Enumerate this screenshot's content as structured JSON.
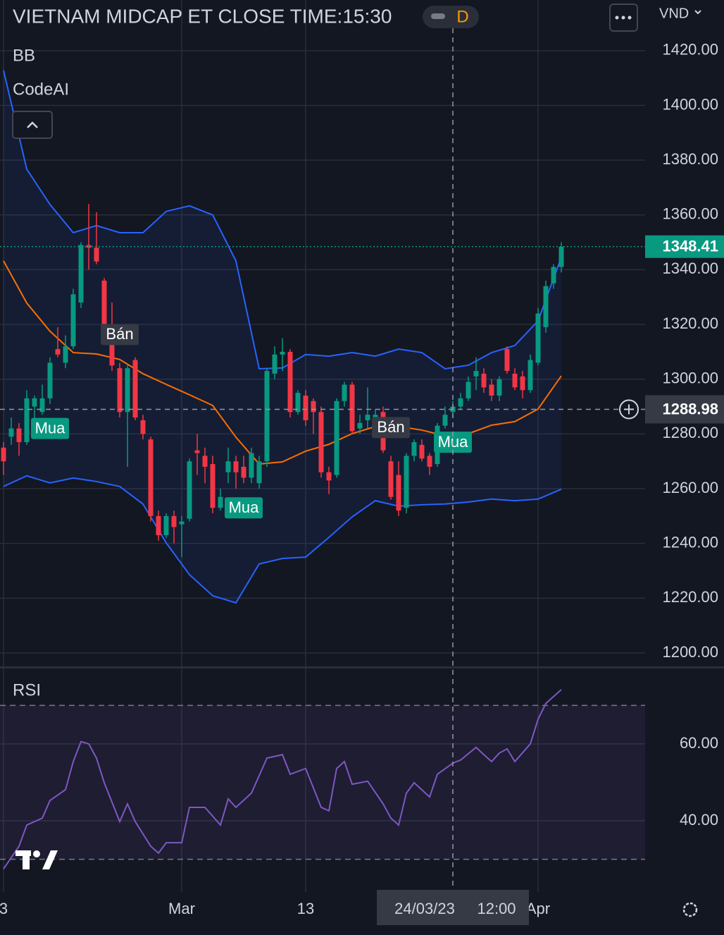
{
  "header": {
    "title": "VIETNAM MIDCAP ET CLOSE TIME:15:30",
    "interval": "D",
    "currency": "VND"
  },
  "chart_data": [
    {
      "type": "candlestick",
      "indicators": [
        "BB",
        "CodeAI"
      ],
      "categories": [
        "3",
        null,
        null,
        null,
        null,
        null,
        null,
        null,
        null,
        null,
        null,
        null,
        null,
        null,
        null,
        null,
        null,
        null,
        null,
        null,
        null,
        null,
        null,
        "Mar",
        null,
        null,
        null,
        null,
        null,
        null,
        null,
        null,
        null,
        null,
        null,
        null,
        null,
        null,
        null,
        "13",
        null,
        null,
        null,
        null,
        null,
        null,
        null,
        null,
        null,
        null,
        null,
        null,
        null,
        null,
        null,
        null,
        null,
        null,
        null,
        null,
        null,
        null,
        null,
        null,
        null,
        null,
        null,
        null,
        null,
        "Apr",
        null,
        null,
        null
      ],
      "open": [
        1275,
        1279,
        1282,
        1277,
        1290,
        1288,
        1293,
        1311,
        1306,
        1312,
        1328,
        1349,
        1348,
        1336,
        1320,
        1304,
        1288,
        1307,
        1285,
        1278,
        1250,
        1243,
        1250,
        1247,
        1249,
        1274,
        1272,
        1269,
        1253,
        1266,
        1270,
        1268,
        1264,
        1262,
        1270,
        1302,
        1309,
        1310,
        1288,
        1294,
        1292,
        1288,
        1266,
        1265,
        1292,
        1298,
        1282,
        1285,
        1286,
        1288,
        1270,
        1265,
        1253,
        1272,
        1276,
        1272,
        1269,
        1283,
        1288,
        1290,
        1293,
        1301,
        1302,
        1298,
        1294,
        1311,
        1302,
        1301,
        1296,
        1306,
        1319,
        1335,
        1341
      ],
      "high": [
        1277,
        1286,
        1284,
        1296,
        1294,
        1298,
        1308,
        1319,
        1316,
        1333,
        1350,
        1364,
        1361,
        1337,
        1328,
        1306,
        1305,
        1308,
        1287,
        1279,
        1252,
        1251,
        1252,
        1250,
        1271,
        1280,
        1275,
        1272,
        1260,
        1275,
        1272,
        1272,
        1275,
        1272,
        1304,
        1312,
        1315,
        1311,
        1296,
        1296,
        1293,
        1290,
        1268,
        1293,
        1299,
        1299,
        1287,
        1297,
        1289,
        1290,
        1272,
        1270,
        1273,
        1278,
        1278,
        1273,
        1284,
        1290,
        1292,
        1295,
        1301,
        1308,
        1304,
        1300,
        1301,
        1312,
        1304,
        1303,
        1309,
        1326,
        1336,
        1342,
        1350
      ],
      "low": [
        1265,
        1276,
        1272,
        1276,
        1285,
        1287,
        1291,
        1308,
        1304,
        1311,
        1326,
        1340,
        1342,
        1317,
        1303,
        1286,
        1268,
        1285,
        1278,
        1248,
        1241,
        1242,
        1240,
        1235,
        1248,
        1265,
        1262,
        1251,
        1252,
        1262,
        1260,
        1262,
        1262,
        1260,
        1268,
        1300,
        1303,
        1286,
        1287,
        1283,
        1280,
        1264,
        1258,
        1264,
        1290,
        1280,
        1280,
        1282,
        1284,
        1273,
        1256,
        1250,
        1251,
        1270,
        1270,
        1265,
        1268,
        1282,
        1286,
        1289,
        1292,
        1296,
        1295,
        1292,
        1292,
        1302,
        1296,
        1293,
        1295,
        1305,
        1317,
        1333,
        1339
      ],
      "close": [
        1270,
        1282,
        1277,
        1293,
        1293,
        1293,
        1306,
        1309,
        1312,
        1331,
        1349,
        1348,
        1343,
        1320,
        1305,
        1288,
        1304,
        1286,
        1280,
        1250,
        1243,
        1250,
        1246,
        1248,
        1270,
        1273,
        1268,
        1253,
        1257,
        1270,
        1266,
        1264,
        1273,
        1270,
        1303,
        1309,
        1310,
        1288,
        1295,
        1285,
        1288,
        1266,
        1263,
        1292,
        1298,
        1281,
        1284,
        1287,
        1287,
        1274,
        1257,
        1252,
        1272,
        1277,
        1271,
        1268,
        1283,
        1287,
        1290,
        1293,
        1299,
        1303,
        1297,
        1294,
        1300,
        1303,
        1297,
        1296,
        1307,
        1324,
        1334,
        1341,
        1348.41
      ],
      "up_color": "#089981",
      "down_color": "#f23645",
      "bands": {
        "x": [
          0,
          3,
          6,
          9,
          12,
          15,
          18,
          21,
          24,
          27,
          30,
          33,
          36,
          39,
          42,
          45,
          48,
          51,
          54,
          57,
          60,
          63,
          66,
          69,
          72
        ],
        "upper": [
          1412.8,
          1376.7,
          1363.8,
          1353.5,
          1356.1,
          1353.5,
          1353.5,
          1361.3,
          1363.3,
          1360,
          1343.2,
          1303.8,
          1304.1,
          1309,
          1308.4,
          1309.7,
          1308.4,
          1311,
          1309.7,
          1303.8,
          1305.1,
          1309.7,
          1312.3,
          1321.3,
          1344.5
        ],
        "middle": [
          1343.2,
          1327.8,
          1317.5,
          1309.7,
          1309.2,
          1307.2,
          1302,
          1298.1,
          1294.3,
          1290.4,
          1278.8,
          1269,
          1269.8,
          1273.7,
          1276.2,
          1280.1,
          1282.7,
          1282.7,
          1281.4,
          1279.3,
          1280.1,
          1283.2,
          1284.5,
          1289.1,
          1301.2
        ],
        "lower": [
          1260.8,
          1264.7,
          1262.1,
          1263.9,
          1262.6,
          1260.8,
          1254.4,
          1240.2,
          1228.6,
          1220.9,
          1218.3,
          1232.5,
          1234.5,
          1235,
          1242.2,
          1249.7,
          1255.6,
          1253.6,
          1254.1,
          1254.4,
          1255.1,
          1256.2,
          1255.6,
          1256.2,
          1259.8
        ],
        "upper_color": "#2962ff",
        "middle_color": "#ff6d00",
        "lower_color": "#2962ff",
        "fill": "rgba(41,98,255,0.08)"
      },
      "signals": [
        {
          "text": "Mua",
          "x": 6,
          "position": "below",
          "color": "#089981"
        },
        {
          "text": "Bán",
          "x": 15,
          "position": "above",
          "color": "#363a45"
        },
        {
          "text": "Mua",
          "x": 31,
          "position": "below",
          "color": "#089981"
        },
        {
          "text": "Bán",
          "x": 50,
          "position": "above",
          "color": "#363a45"
        },
        {
          "text": "Mua",
          "x": 58,
          "position": "below",
          "color": "#089981"
        }
      ],
      "last_price": 1348.41,
      "crosshair": {
        "x": 58,
        "price": 1288.98,
        "date": "24/03/23",
        "time": "12:00"
      },
      "ylim": [
        1195.1,
        1438.5
      ],
      "yticks": [
        {
          "value": 1200,
          "label": "1200.00"
        },
        {
          "value": 1220,
          "label": "1220.00"
        },
        {
          "value": 1240,
          "label": "1240.00"
        },
        {
          "value": 1260,
          "label": "1260.00"
        },
        {
          "value": 1280,
          "label": "1280.00"
        },
        {
          "value": 1300,
          "label": "1300.00"
        },
        {
          "value": 1320,
          "label": "1320.00"
        },
        {
          "value": 1340,
          "label": "1340.00"
        },
        {
          "value": 1360,
          "label": "1360.00"
        },
        {
          "value": 1380,
          "label": "1380.00"
        },
        {
          "value": 1400,
          "label": "1400.00"
        },
        {
          "value": 1420,
          "label": "1420.00"
        }
      ],
      "grid": true
    },
    {
      "type": "line",
      "title": "RSI",
      "x": [
        0,
        2,
        3,
        5,
        6,
        8,
        9,
        10,
        11,
        12,
        13,
        15,
        16,
        17,
        19,
        20,
        21,
        23,
        24,
        26,
        28,
        29,
        30,
        32,
        34,
        36,
        37,
        39,
        41,
        42,
        43,
        44,
        45,
        47,
        49,
        50,
        51,
        52,
        53,
        55,
        56,
        58,
        59,
        61,
        62,
        63,
        64,
        65,
        66,
        68,
        69,
        70,
        72
      ],
      "values": [
        27.5,
        33.4,
        38.9,
        40.7,
        45.3,
        48.1,
        55.4,
        60.6,
        60,
        56.3,
        49.9,
        39.8,
        44.4,
        39.8,
        33.4,
        31.6,
        34.3,
        34.3,
        43.5,
        43.5,
        38.9,
        45.7,
        43.5,
        47.2,
        56.3,
        57.2,
        52.1,
        53.6,
        43.5,
        42.6,
        53.6,
        55.4,
        49.5,
        50.3,
        44.4,
        40.7,
        38.9,
        47.2,
        49.9,
        46.2,
        52.1,
        55,
        55.8,
        59.1,
        57.2,
        55.4,
        57.6,
        58.7,
        55.4,
        60,
        66.4,
        70.5,
        74.1
      ],
      "color": "#7e57c2",
      "bands": [
        30,
        70
      ],
      "band_fill": "rgba(126,87,194,0.1)",
      "ylim": [
        21.5,
        79.6
      ],
      "yticks": [
        {
          "value": 40,
          "label": "40.00"
        },
        {
          "value": 60,
          "label": "60.00"
        }
      ],
      "grid": true
    }
  ]
}
